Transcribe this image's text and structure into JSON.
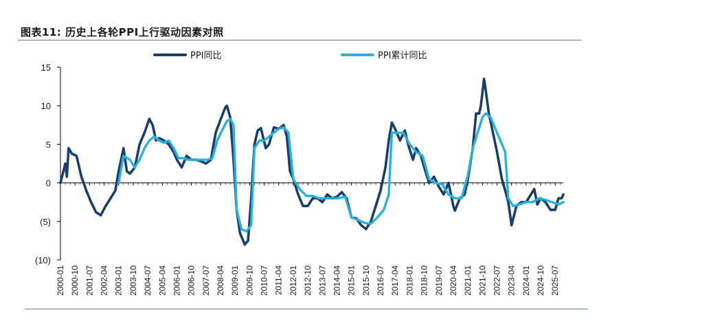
{
  "figure": {
    "title": "图表11:  历史上各轮PPI上行驱动因素对照"
  },
  "colors": {
    "ppi_yoy": "#163e6e",
    "ppi_cumulative": "#28b0de",
    "axis": "#000000",
    "rule": "#5f7f9a"
  },
  "chart_data": {
    "type": "line",
    "title": "图表11:  历史上各轮PPI上行驱动因素对照",
    "xlabel": "",
    "ylabel": "",
    "ylim": [
      -10,
      15
    ],
    "yticks": [
      15,
      10,
      5,
      0,
      -5,
      -10
    ],
    "ytick_labels": [
      "15",
      "10",
      "5",
      "0",
      "(5)",
      "(10)"
    ],
    "xlim": [
      2000.0,
      2025.917
    ],
    "xtick_labels": [
      "2000-01",
      "2000-10",
      "2001-07",
      "2002-04",
      "2003-01",
      "2003-10",
      "2004-07",
      "2005-04",
      "2006-01",
      "2006-10",
      "2007-07",
      "2008-04",
      "2009-01",
      "2009-10",
      "2010-07",
      "2011-04",
      "2012-01",
      "2012-10",
      "2013-07",
      "2014-04",
      "2015-01",
      "2015-10",
      "2016-07",
      "2017-04",
      "2018-01",
      "2018-10",
      "2019-07",
      "2020-04",
      "2021-01",
      "2021-10",
      "2022-07",
      "2023-04",
      "2024-01",
      "2024-10",
      "2025-07"
    ],
    "legend": [
      "PPI同比",
      "PPI累计同比"
    ],
    "legend_position": "top",
    "series": [
      {
        "name": "PPI同比",
        "x": [
          2000.0,
          2000.25,
          2000.33,
          2000.42,
          2000.58,
          2000.83,
          2001.08,
          2001.33,
          2001.58,
          2001.83,
          2002.08,
          2002.33,
          2002.58,
          2002.83,
          2003.0,
          2003.25,
          2003.42,
          2003.58,
          2003.83,
          2004.08,
          2004.33,
          2004.58,
          2004.75,
          2004.92,
          2005.08,
          2005.33,
          2005.58,
          2005.83,
          2006.0,
          2006.25,
          2006.5,
          2006.75,
          2007.0,
          2007.25,
          2007.5,
          2007.75,
          2008.0,
          2008.25,
          2008.5,
          2008.58,
          2008.75,
          2008.92,
          2009.08,
          2009.25,
          2009.5,
          2009.67,
          2009.83,
          2010.0,
          2010.17,
          2010.33,
          2010.58,
          2010.75,
          2011.0,
          2011.25,
          2011.5,
          2011.67,
          2011.83,
          2012.0,
          2012.25,
          2012.5,
          2012.75,
          2013.0,
          2013.25,
          2013.5,
          2013.75,
          2014.0,
          2014.25,
          2014.5,
          2014.75,
          2015.0,
          2015.25,
          2015.5,
          2015.75,
          2016.0,
          2016.25,
          2016.5,
          2016.75,
          2016.92,
          2017.08,
          2017.25,
          2017.5,
          2017.75,
          2017.92,
          2018.17,
          2018.33,
          2018.58,
          2018.75,
          2019.0,
          2019.25,
          2019.5,
          2019.75,
          2020.0,
          2020.25,
          2020.33,
          2020.58,
          2020.83,
          2021.0,
          2021.25,
          2021.42,
          2021.58,
          2021.67,
          2021.83,
          2021.92,
          2022.08,
          2022.25,
          2022.5,
          2022.75,
          2022.92,
          2023.08,
          2023.25,
          2023.5,
          2023.75,
          2024.0,
          2024.25,
          2024.42,
          2024.58,
          2024.75,
          2025.0,
          2025.25,
          2025.5,
          2025.67,
          2025.83,
          2025.92
        ],
        "values": [
          0.0,
          2.5,
          0.8,
          4.5,
          3.8,
          3.5,
          0.8,
          -1.0,
          -2.5,
          -3.8,
          -4.2,
          -3.0,
          -2.0,
          -1.0,
          1.5,
          4.5,
          1.5,
          1.2,
          2.0,
          5.0,
          6.5,
          8.3,
          7.5,
          5.5,
          5.8,
          5.5,
          5.0,
          4.0,
          3.0,
          2.0,
          3.5,
          3.0,
          3.0,
          2.8,
          2.5,
          3.0,
          6.5,
          8.2,
          9.8,
          10.0,
          8.5,
          3.0,
          -3.5,
          -6.5,
          -8.0,
          -7.5,
          -2.0,
          5.0,
          6.8,
          7.1,
          4.5,
          5.0,
          7.2,
          7.0,
          7.5,
          6.0,
          1.5,
          0.5,
          -1.5,
          -3.0,
          -3.0,
          -2.0,
          -2.0,
          -2.5,
          -1.5,
          -2.0,
          -1.8,
          -1.2,
          -2.0,
          -4.5,
          -4.6,
          -5.5,
          -6.0,
          -5.0,
          -3.0,
          -1.0,
          2.0,
          5.5,
          7.8,
          7.0,
          5.5,
          6.8,
          5.0,
          3.0,
          4.5,
          3.5,
          2.0,
          0.0,
          0.8,
          -0.5,
          -1.5,
          0.0,
          -3.0,
          -3.6,
          -2.0,
          -1.5,
          0.5,
          4.5,
          9.0,
          9.0,
          10.0,
          13.5,
          12.0,
          9.0,
          7.0,
          4.0,
          0.5,
          -1.0,
          -2.5,
          -5.5,
          -3.0,
          -2.5,
          -2.5,
          -1.5,
          -0.8,
          -2.8,
          -2.0,
          -2.5,
          -3.5,
          -3.5,
          -2.0,
          -2.0,
          -1.5
        ]
      },
      {
        "name": "PPI累计同比",
        "x": [
          2003.0,
          2003.25,
          2003.58,
          2003.83,
          2004.08,
          2004.33,
          2004.58,
          2004.83,
          2005.08,
          2005.33,
          2005.58,
          2005.83,
          2006.08,
          2006.33,
          2006.58,
          2006.83,
          2007.08,
          2007.33,
          2007.58,
          2007.83,
          2008.08,
          2008.33,
          2008.58,
          2008.75,
          2008.92,
          2009.08,
          2009.33,
          2009.58,
          2009.83,
          2010.0,
          2010.25,
          2010.5,
          2010.75,
          2011.0,
          2011.25,
          2011.5,
          2011.75,
          2012.0,
          2012.33,
          2012.67,
          2013.0,
          2013.33,
          2013.67,
          2014.0,
          2014.33,
          2014.67,
          2015.0,
          2015.33,
          2015.67,
          2016.0,
          2016.33,
          2016.67,
          2016.92,
          2017.08,
          2017.33,
          2017.67,
          2018.0,
          2018.33,
          2018.67,
          2019.0,
          2019.33,
          2019.67,
          2020.0,
          2020.33,
          2020.67,
          2021.0,
          2021.25,
          2021.5,
          2021.75,
          2021.92,
          2022.17,
          2022.42,
          2022.67,
          2022.92,
          2023.08,
          2023.33,
          2023.67,
          2024.0,
          2024.33,
          2024.67,
          2025.0,
          2025.33,
          2025.67,
          2025.92
        ],
        "values": [
          0.0,
          3.5,
          3.0,
          2.0,
          3.0,
          4.5,
          5.5,
          6.0,
          5.5,
          5.2,
          5.5,
          4.5,
          3.2,
          3.2,
          3.0,
          3.0,
          3.0,
          3.0,
          3.0,
          3.2,
          5.5,
          6.8,
          8.0,
          8.3,
          7.5,
          -3.5,
          -6.0,
          -6.3,
          -5.5,
          4.5,
          5.5,
          5.5,
          6.0,
          6.5,
          7.0,
          7.2,
          6.5,
          0.5,
          -0.8,
          -1.7,
          -1.7,
          -2.0,
          -2.0,
          -2.0,
          -2.0,
          -1.8,
          -4.5,
          -4.8,
          -5.2,
          -5.3,
          -4.5,
          -3.5,
          -1.5,
          6.5,
          6.5,
          6.5,
          5.0,
          4.0,
          3.5,
          0.5,
          0.0,
          -0.2,
          -1.5,
          -2.0,
          -2.0,
          1.0,
          4.5,
          6.5,
          8.5,
          9.0,
          8.5,
          7.0,
          5.5,
          4.0,
          -2.0,
          -3.0,
          -2.8,
          -2.5,
          -2.5,
          -2.0,
          -2.2,
          -2.5,
          -2.8,
          -2.5
        ]
      }
    ]
  }
}
